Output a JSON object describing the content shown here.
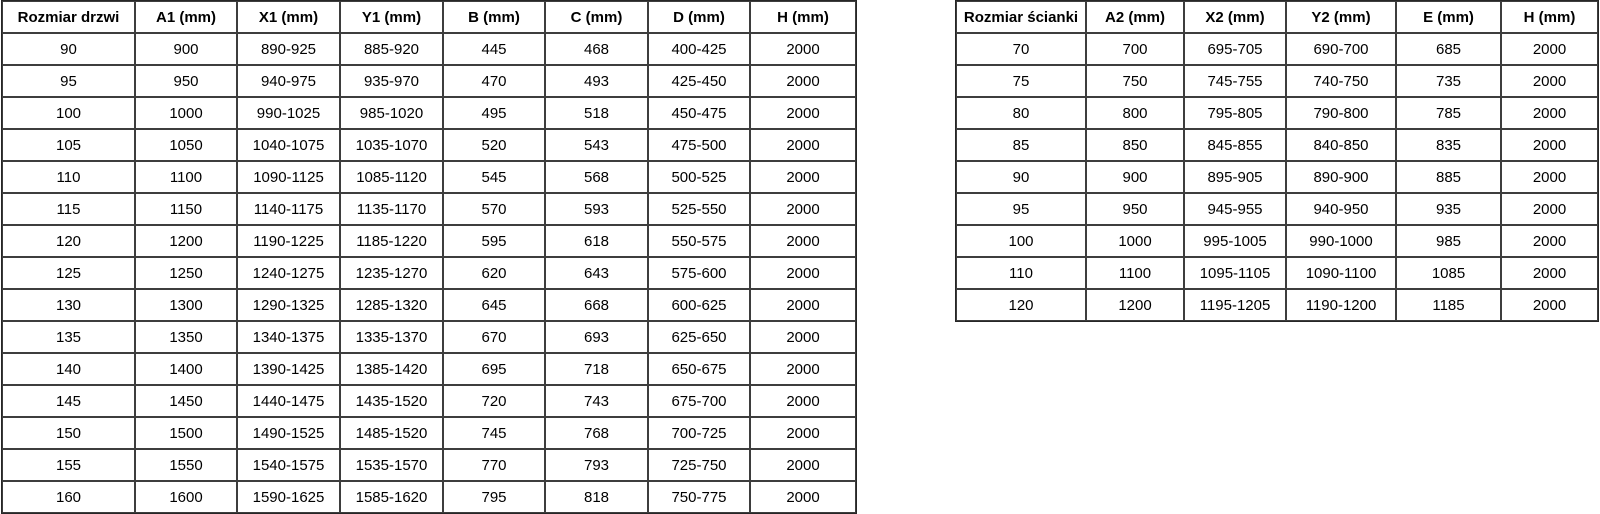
{
  "tables": {
    "doors": {
      "headers": [
        "Rozmiar drzwi",
        "A1 (mm)",
        "X1 (mm)",
        "Y1 (mm)",
        "B (mm)",
        "C (mm)",
        "D (mm)",
        "H (mm)"
      ],
      "rows": [
        [
          "90",
          "900",
          "890-925",
          "885-920",
          "445",
          "468",
          "400-425",
          "2000"
        ],
        [
          "95",
          "950",
          "940-975",
          "935-970",
          "470",
          "493",
          "425-450",
          "2000"
        ],
        [
          "100",
          "1000",
          "990-1025",
          "985-1020",
          "495",
          "518",
          "450-475",
          "2000"
        ],
        [
          "105",
          "1050",
          "1040-1075",
          "1035-1070",
          "520",
          "543",
          "475-500",
          "2000"
        ],
        [
          "110",
          "1100",
          "1090-1125",
          "1085-1120",
          "545",
          "568",
          "500-525",
          "2000"
        ],
        [
          "115",
          "1150",
          "1140-1175",
          "1135-1170",
          "570",
          "593",
          "525-550",
          "2000"
        ],
        [
          "120",
          "1200",
          "1190-1225",
          "1185-1220",
          "595",
          "618",
          "550-575",
          "2000"
        ],
        [
          "125",
          "1250",
          "1240-1275",
          "1235-1270",
          "620",
          "643",
          "575-600",
          "2000"
        ],
        [
          "130",
          "1300",
          "1290-1325",
          "1285-1320",
          "645",
          "668",
          "600-625",
          "2000"
        ],
        [
          "135",
          "1350",
          "1340-1375",
          "1335-1370",
          "670",
          "693",
          "625-650",
          "2000"
        ],
        [
          "140",
          "1400",
          "1390-1425",
          "1385-1420",
          "695",
          "718",
          "650-675",
          "2000"
        ],
        [
          "145",
          "1450",
          "1440-1475",
          "1435-1520",
          "720",
          "743",
          "675-700",
          "2000"
        ],
        [
          "150",
          "1500",
          "1490-1525",
          "1485-1520",
          "745",
          "768",
          "700-725",
          "2000"
        ],
        [
          "155",
          "1550",
          "1540-1575",
          "1535-1570",
          "770",
          "793",
          "725-750",
          "2000"
        ],
        [
          "160",
          "1600",
          "1590-1625",
          "1585-1620",
          "795",
          "818",
          "750-775",
          "2000"
        ]
      ]
    },
    "walls": {
      "headers": [
        "Rozmiar ścianki",
        "A2 (mm)",
        "X2 (mm)",
        "Y2 (mm)",
        "E (mm)",
        "H (mm)"
      ],
      "rows": [
        [
          "70",
          "700",
          "695-705",
          "690-700",
          "685",
          "2000"
        ],
        [
          "75",
          "750",
          "745-755",
          "740-750",
          "735",
          "2000"
        ],
        [
          "80",
          "800",
          "795-805",
          "790-800",
          "785",
          "2000"
        ],
        [
          "85",
          "850",
          "845-855",
          "840-850",
          "835",
          "2000"
        ],
        [
          "90",
          "900",
          "895-905",
          "890-900",
          "885",
          "2000"
        ],
        [
          "95",
          "950",
          "945-955",
          "940-950",
          "935",
          "2000"
        ],
        [
          "100",
          "1000",
          "995-1005",
          "990-1000",
          "985",
          "2000"
        ],
        [
          "110",
          "1100",
          "1095-1105",
          "1090-1100",
          "1085",
          "2000"
        ],
        [
          "120",
          "1200",
          "1195-1205",
          "1190-1200",
          "1185",
          "2000"
        ]
      ]
    }
  },
  "colors": {
    "background": "#ffffff",
    "text": "#000000",
    "grid_border": "#3d3d3d"
  }
}
